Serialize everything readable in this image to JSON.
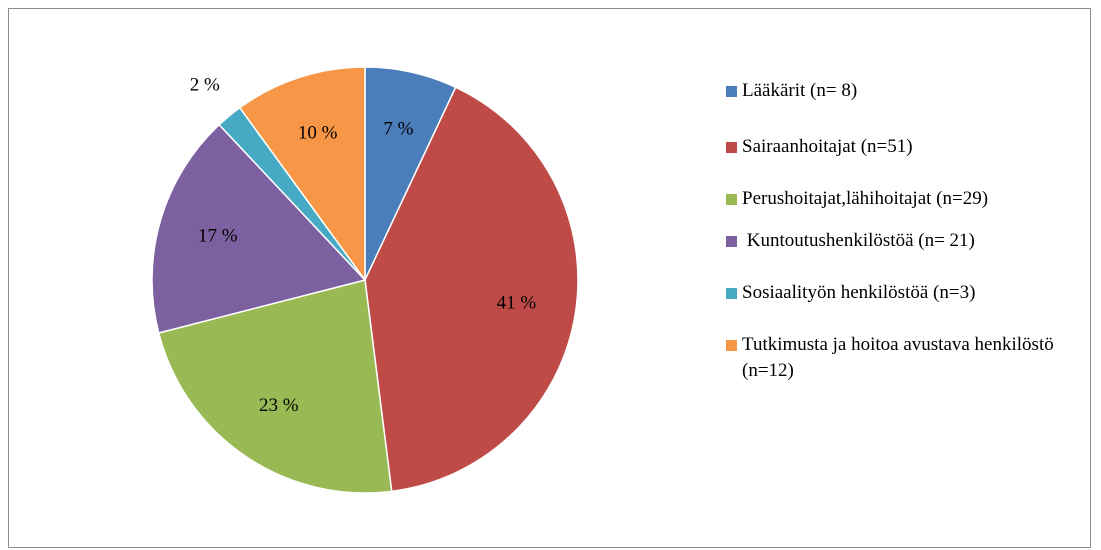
{
  "chart_data": {
    "type": "pie",
    "categories": [
      "Lääkärit (n= 8)",
      "Sairaanhoitajat (n=51)",
      "Perushoitajat,lähihoitajat (n=29)",
      " Kuntoutushenkilöstöä (n= 21)",
      "Sosiaalityön henkilöstöä (n=3)",
      "Tutkimusta ja hoitoa avustava henkilöstö (n=12)"
    ],
    "values": [
      7,
      41,
      23,
      17,
      2,
      10
    ],
    "value_labels": [
      "7 %",
      "41 %",
      "23 %",
      "17 %",
      "2 %",
      "10 %"
    ],
    "colors": [
      "#4a7ebb",
      "#be4b48",
      "#98b954",
      "#7d60a0",
      "#46aac5",
      "#f79646"
    ],
    "legend": "right"
  }
}
